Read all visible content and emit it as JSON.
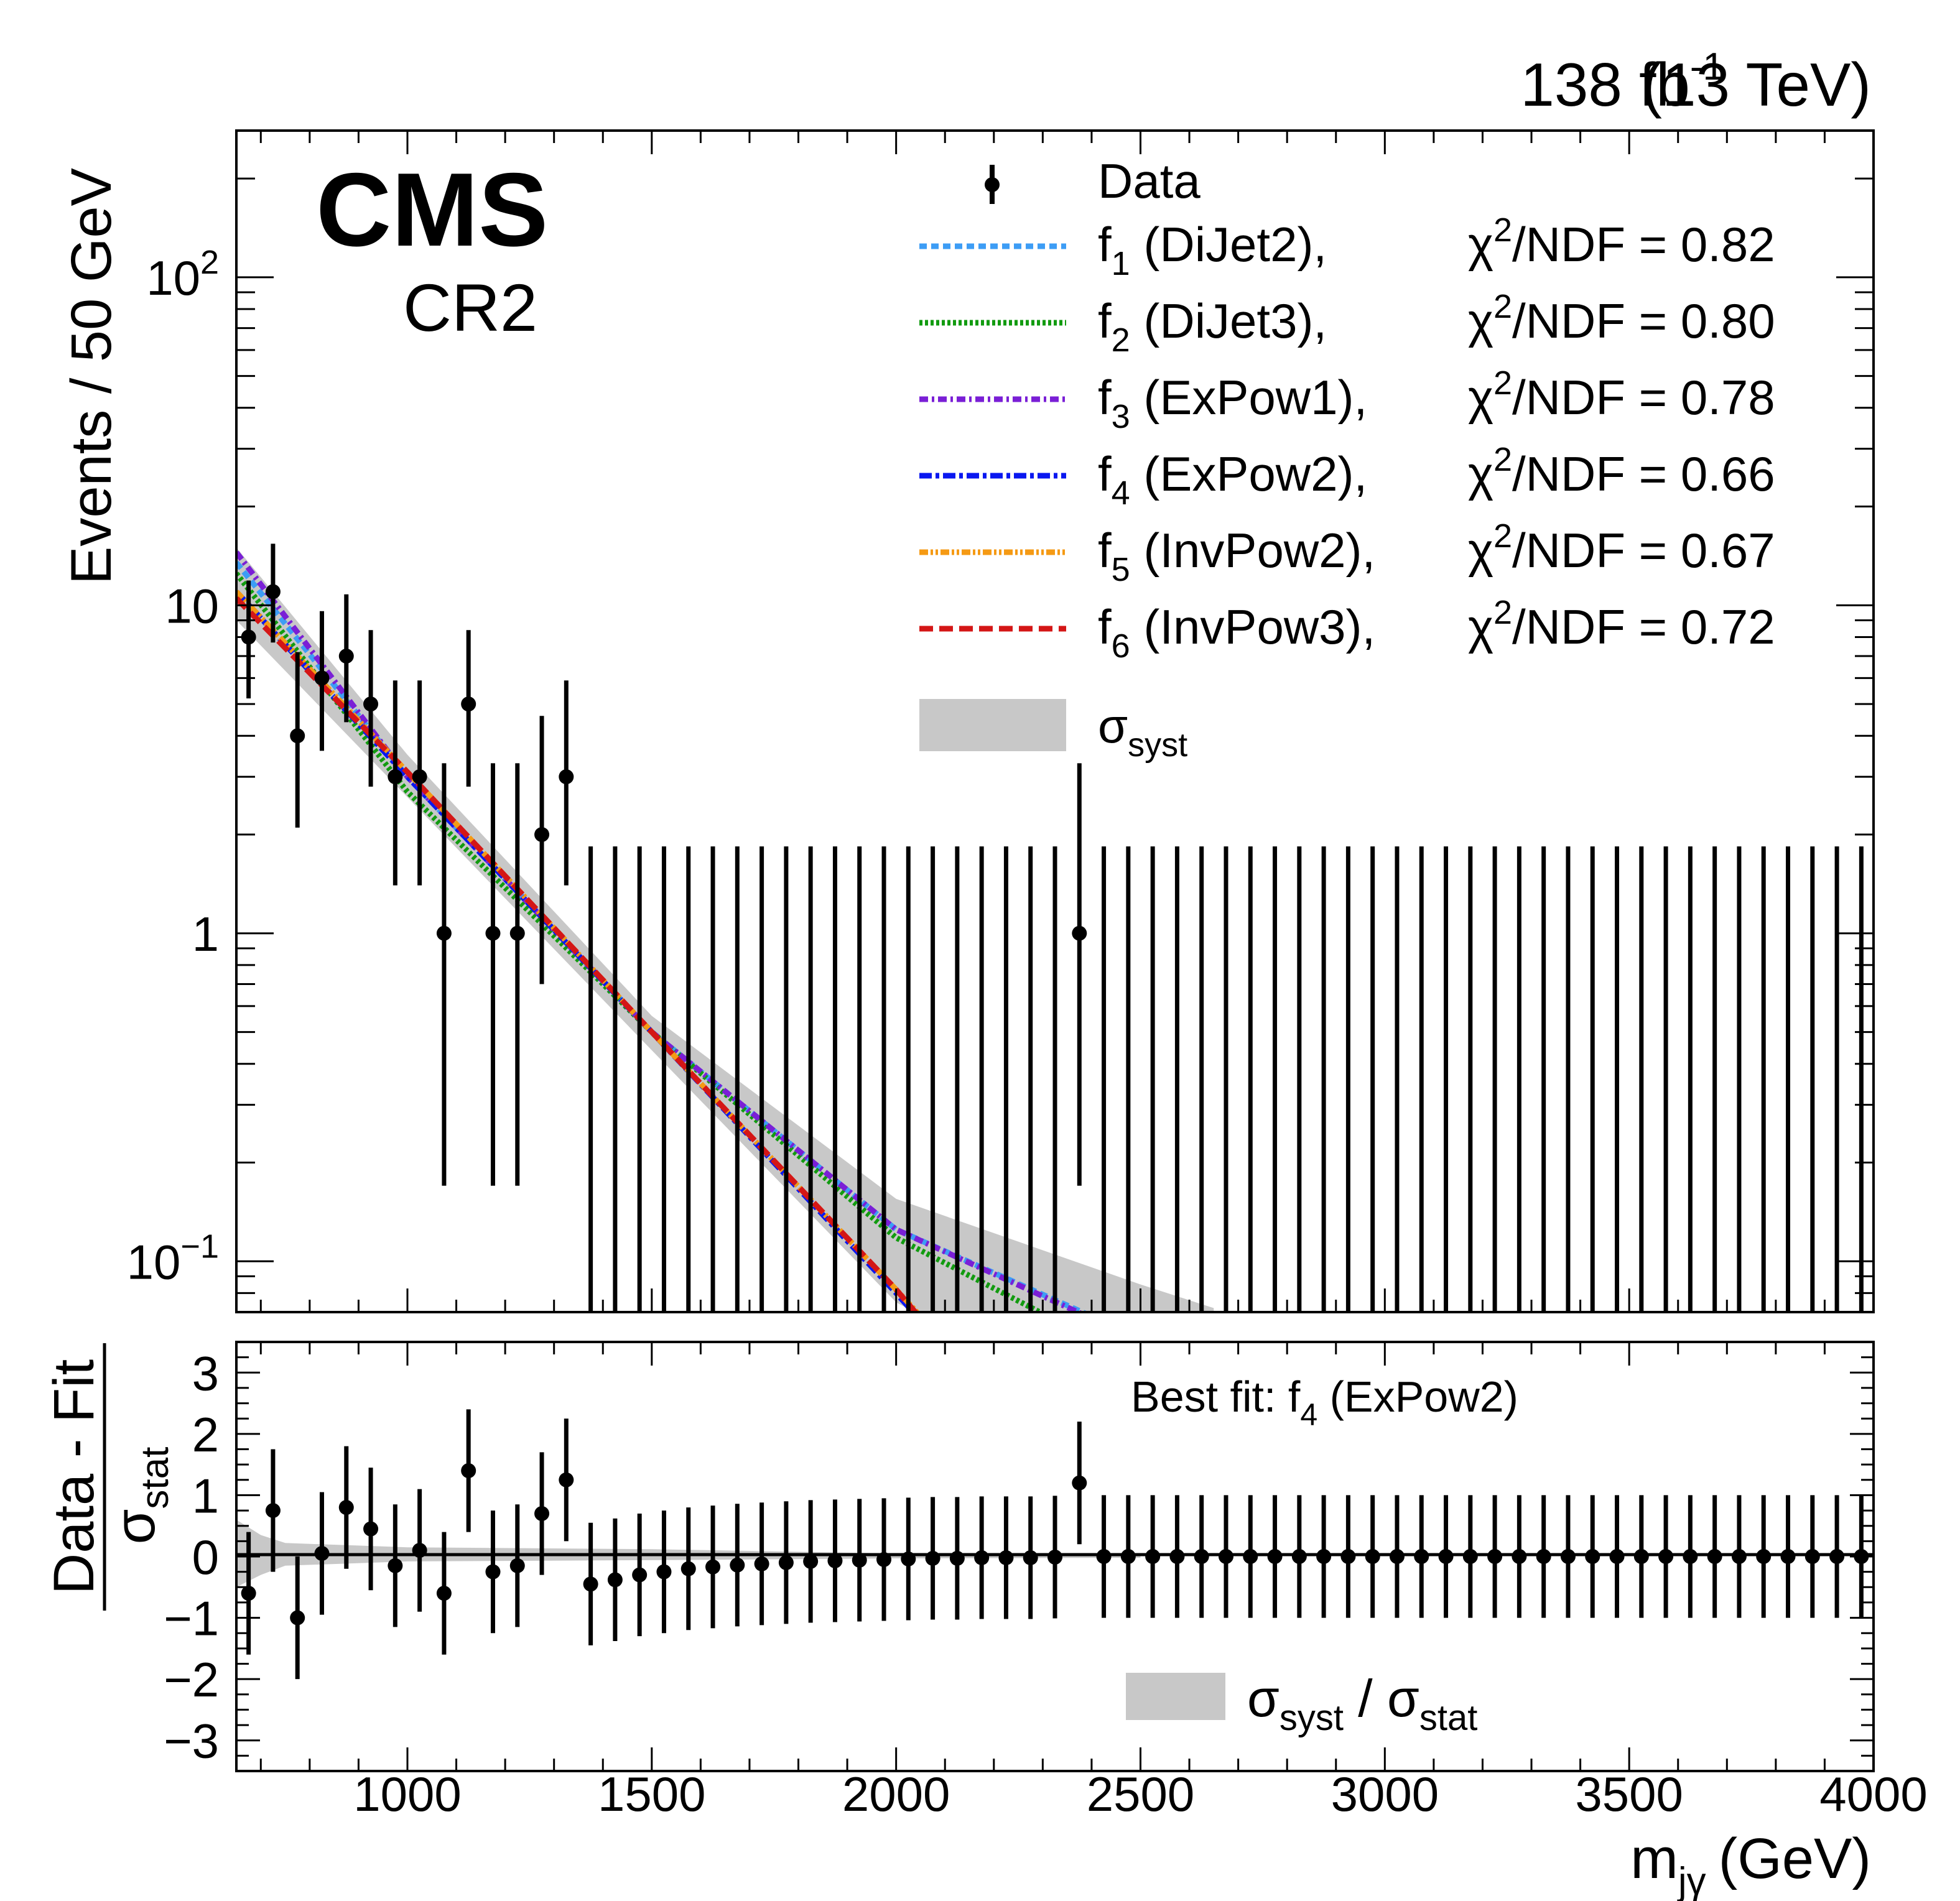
{
  "header": {
    "luminosity": "138 fb",
    "lumi_exp": "-1",
    "energy": "(13 TeV)"
  },
  "labels": {
    "cms": "CMS",
    "region": "CR2",
    "ylabel_top": "Events / 50 GeV",
    "ratio_num": "Data - Fit",
    "ratio_den_sym": "σ",
    "ratio_den_sub": "stat",
    "xlabel_m": "m",
    "xlabel_sub": "jγ",
    "xlabel_unit": "(GeV)",
    "best_fit_pre": "Best fit: f",
    "best_fit_sub": "4",
    "best_fit_post": " (ExPow2)"
  },
  "legend": {
    "data": "Data",
    "syst_sym": "σ",
    "syst_sub": "syst",
    "chi_pre": "χ",
    "chi_sup": "2",
    "chi_mid": "/NDF = ",
    "entries": [
      {
        "f": "f",
        "idx": "1",
        "name": " (DiJet2),",
        "chi": "0.82",
        "color": "#3d9df5",
        "dash": "12 7"
      },
      {
        "f": "f",
        "idx": "2",
        "name": " (DiJet3),",
        "chi": "0.80",
        "color": "#129b10",
        "dash": "5 4"
      },
      {
        "f": "f",
        "idx": "3",
        "name": " (ExPow1),",
        "chi": "0.78",
        "color": "#7a1fd6",
        "dash": "14 6 4 6"
      },
      {
        "f": "f",
        "idx": "4",
        "name": " (ExPow2),",
        "chi": "0.66",
        "color": "#0a18f0",
        "dash": "20 6 6 6"
      },
      {
        "f": "f",
        "idx": "5",
        "name": " (InvPow2),",
        "chi": "0.67",
        "color": "#f59a14",
        "dash": "14 4 4 4 4 4"
      },
      {
        "f": "f",
        "idx": "6",
        "name": " (InvPow3),",
        "chi": "0.72",
        "color": "#d41616",
        "dash": "22 10"
      }
    ]
  },
  "ratio_legend": {
    "sym1": "σ",
    "sub1": "syst",
    "slash": " / ",
    "sym2": "σ",
    "sub2": "stat"
  },
  "chart_data": [
    {
      "type": "scatter",
      "title": "",
      "xlabel": "m_jγ (GeV)",
      "ylabel": "Events / 50 GeV",
      "xlim": [
        650,
        4000
      ],
      "ylim": [
        0.07,
        280
      ],
      "yscale": "log",
      "x_ticks": [
        1000,
        1500,
        2000,
        2500,
        3000,
        3500,
        4000
      ],
      "y_ticks": [
        {
          "value": 0.1,
          "base": "10",
          "exp": "−1"
        },
        {
          "value": 1,
          "label": "1"
        },
        {
          "value": 10,
          "label": "10"
        },
        {
          "value": 100,
          "base": "10",
          "exp": "2"
        }
      ],
      "series": [
        {
          "name": "Data",
          "x": [
            675,
            725,
            775,
            825,
            875,
            925,
            975,
            1025,
            1075,
            1125,
            1175,
            1225,
            1275,
            1325
          ],
          "y": [
            8,
            11,
            4,
            6,
            7,
            5,
            3,
            3,
            1,
            5,
            1,
            1,
            2,
            3
          ],
          "y_err_low": [
            2.8,
            3.3,
            1.9,
            2.4,
            2.6,
            2.2,
            1.6,
            1.6,
            0.83,
            2.2,
            0.83,
            0.83,
            1.3,
            1.6
          ],
          "y_err_high": [
            3.9,
            4.4,
            3.2,
            3.6,
            3.8,
            3.4,
            2.9,
            2.9,
            2.3,
            3.4,
            2.3,
            2.3,
            2.6,
            2.9
          ]
        },
        {
          "name": "Data (zero-count bins, upper error 1.84)",
          "x": [
            1375,
            1425,
            1475,
            1525,
            1575,
            1625,
            1675,
            1725,
            1775,
            1825,
            1875,
            1925,
            1975,
            2025,
            2075,
            2125,
            2175,
            2225,
            2275,
            2325,
            2425,
            2475,
            2525,
            2575,
            2625,
            2675,
            2725,
            2775,
            2825,
            2875,
            2925,
            2975,
            3025,
            3075,
            3125,
            3175,
            3225,
            3275,
            3325,
            3375,
            3425,
            3475,
            3525,
            3575,
            3625,
            3675,
            3725,
            3775,
            3825,
            3875,
            3925,
            3975
          ],
          "y_upper": 1.84
        },
        {
          "name": "Data (single event)",
          "x": [
            2375
          ],
          "y": [
            1
          ],
          "y_err_low": [
            0.83
          ],
          "y_err_high": [
            2.3
          ]
        },
        {
          "name": "f1 (DiJet2)",
          "x": [
            650,
            1000,
            1500,
            2000,
            2400
          ],
          "y": [
            13.5,
            3.0,
            0.5,
            0.125,
            0.068
          ]
        },
        {
          "name": "f2 (DiJet3)",
          "x": [
            650,
            1000,
            1500,
            2000,
            2400
          ],
          "y": [
            12.5,
            2.7,
            0.5,
            0.118,
            0.058
          ]
        },
        {
          "name": "f3 (ExPow1)",
          "x": [
            650,
            1000,
            1500,
            2000,
            2400
          ],
          "y": [
            14.5,
            3.0,
            0.5,
            0.125,
            0.067
          ]
        },
        {
          "name": "f4 (ExPow2)",
          "x": [
            650,
            1000,
            1500,
            2000,
            2050
          ],
          "y": [
            11.0,
            3.0,
            0.5,
            0.08,
            0.066
          ]
        },
        {
          "name": "f5 (InvPow2)",
          "x": [
            650,
            1000,
            1500,
            2000,
            2050
          ],
          "y": [
            11.0,
            3.1,
            0.5,
            0.082,
            0.068
          ]
        },
        {
          "name": "f6 (InvPow3)",
          "x": [
            650,
            1000,
            1500,
            2000,
            2050
          ],
          "y": [
            10.5,
            3.1,
            0.5,
            0.082,
            0.067
          ]
        },
        {
          "name": "σsyst",
          "x": [
            650,
            1000,
            1500,
            2000,
            2500,
            2650
          ],
          "y_low": [
            9.0,
            2.6,
            0.44,
            0.075,
            0.03,
            0.02
          ],
          "y_high": [
            15.0,
            3.5,
            0.56,
            0.155,
            0.085,
            0.072
          ]
        }
      ]
    },
    {
      "type": "scatter",
      "title": "",
      "xlabel": "m_jγ (GeV)",
      "ylabel": "(Data - Fit) / σstat",
      "xlim": [
        650,
        4000
      ],
      "ylim": [
        -3.5,
        3.5
      ],
      "y_ticks": [
        3,
        2,
        1,
        0,
        -1,
        -2,
        -3
      ],
      "y_tick_labels": [
        "3",
        "2",
        "1",
        "0",
        "−1",
        "−2",
        "−3"
      ],
      "series": [
        {
          "name": "Best fit: f4 (ExPow2) residuals",
          "x": [
            675,
            725,
            775,
            825,
            875,
            925,
            975,
            1025,
            1075,
            1125,
            1175,
            1225,
            1275,
            1325,
            1375,
            1425,
            1475,
            1525,
            1575,
            1625,
            1675,
            1725,
            1775,
            1825,
            1875,
            1925,
            1975,
            2025,
            2075,
            2125,
            2175,
            2225,
            2275,
            2325,
            2375,
            2425,
            2475,
            2525,
            2575,
            2625,
            2675,
            2725,
            2775,
            2825,
            2875,
            2925,
            2975,
            3025,
            3075,
            3125,
            3175,
            3225,
            3275,
            3325,
            3375,
            3425,
            3475,
            3525,
            3575,
            3625,
            3675,
            3725,
            3775,
            3825,
            3875,
            3925,
            3975
          ],
          "y": [
            -0.6,
            0.75,
            -1.0,
            0.05,
            0.8,
            0.45,
            -0.15,
            0.1,
            -0.6,
            1.4,
            -0.25,
            -0.15,
            0.7,
            1.25,
            -0.45,
            -0.38,
            -0.3,
            -0.25,
            -0.2,
            -0.17,
            -0.14,
            -0.12,
            -0.1,
            -0.08,
            -0.07,
            -0.06,
            -0.05,
            -0.04,
            -0.03,
            -0.03,
            -0.02,
            -0.02,
            -0.02,
            -0.01,
            1.2,
            0,
            0,
            0,
            0,
            0,
            0,
            0,
            0,
            0,
            0,
            0,
            0,
            0,
            0,
            0,
            0,
            0,
            0,
            0,
            0,
            0,
            0,
            0,
            0,
            0,
            0,
            0,
            0,
            0,
            0,
            0,
            0
          ],
          "y_err": 1.0
        },
        {
          "name": "σsyst / σstat",
          "x": [
            650,
            700,
            750,
            1000,
            1500,
            2000,
            2500
          ],
          "y_high": [
            0.6,
            0.35,
            0.22,
            0.15,
            0.12,
            0.05,
            0.03
          ],
          "y_low": [
            -0.5,
            -0.3,
            -0.15,
            -0.08,
            -0.06,
            -0.03,
            -0.02
          ]
        }
      ]
    }
  ]
}
